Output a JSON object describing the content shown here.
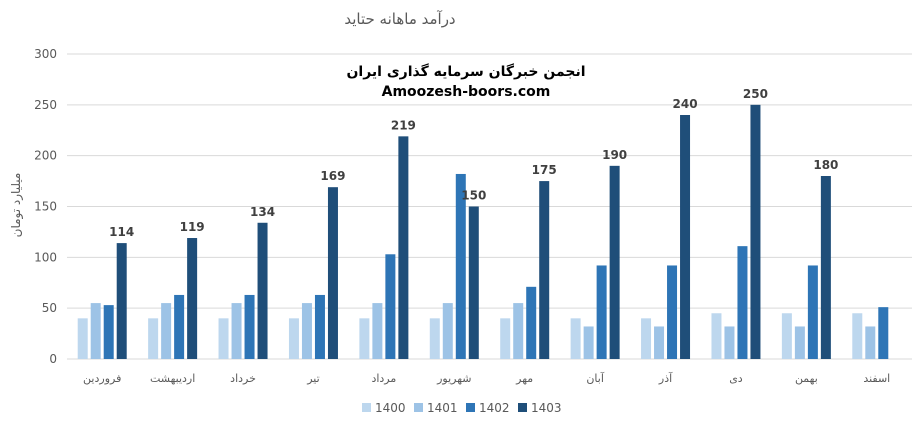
{
  "chart_data": {
    "type": "bar",
    "title": "درآمد ماهانه حتاید",
    "watermark_lines": [
      "انجمن خبرگان سرمایه گذاری ایران",
      "Amoozesh-boors.com"
    ],
    "xlabel": "",
    "ylabel": "میلیارد تومان",
    "ylim": [
      0,
      300
    ],
    "yticks": [
      0,
      50,
      100,
      150,
      200,
      250,
      300
    ],
    "grid": true,
    "legend_position": "bottom",
    "categories": [
      "فروردین",
      "اردیبهشت",
      "خرداد",
      "تیر",
      "مرداد",
      "شهریور",
      "مهر",
      "آبان",
      "آذر",
      "دی",
      "بهمن",
      "اسفند"
    ],
    "series": [
      {
        "name": "1400",
        "color": "#bdd7ee",
        "values": [
          40,
          40,
          40,
          40,
          40,
          40,
          40,
          40,
          40,
          45,
          45,
          45
        ]
      },
      {
        "name": "1401",
        "color": "#9dc3e6",
        "values": [
          55,
          55,
          55,
          55,
          55,
          55,
          55,
          32,
          32,
          32,
          32,
          32
        ]
      },
      {
        "name": "1402",
        "color": "#2e75b6",
        "values": [
          53,
          63,
          63,
          63,
          103,
          182,
          71,
          92,
          92,
          111,
          92,
          51
        ]
      },
      {
        "name": "1403",
        "color": "#1f4e79",
        "values": [
          114,
          119,
          134,
          169,
          219,
          150,
          175,
          190,
          240,
          250,
          180,
          null
        ],
        "labels": [
          "114",
          "119",
          "134",
          "169",
          "219",
          "150",
          "175",
          "190",
          "240",
          "250",
          "180",
          ""
        ]
      }
    ]
  }
}
